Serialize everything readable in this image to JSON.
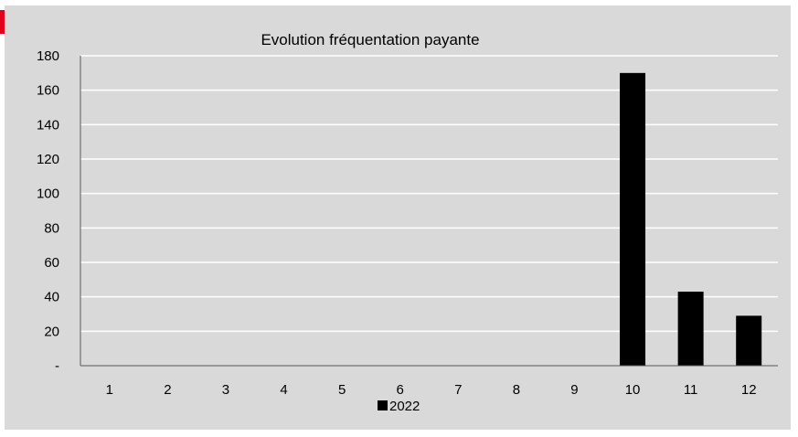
{
  "chart_data": {
    "type": "bar",
    "title": "Evolution fréquentation payante",
    "categories": [
      "1",
      "2",
      "3",
      "4",
      "5",
      "6",
      "7",
      "8",
      "9",
      "10",
      "11",
      "12"
    ],
    "series": [
      {
        "name": "2022",
        "color": "#000000",
        "values": [
          0,
          0,
          0,
          0,
          0,
          0,
          0,
          0,
          0,
          170,
          43,
          29
        ]
      }
    ],
    "yticks": [
      "-",
      "20",
      "40",
      "60",
      "80",
      "100",
      "120",
      "140",
      "160",
      "180"
    ],
    "ylim": [
      0,
      180
    ],
    "grid": true,
    "legend_position": "bottom",
    "colors": {
      "background": "#d9d9d9",
      "gridline": "#ffffff",
      "accent": "#e2001a"
    }
  }
}
